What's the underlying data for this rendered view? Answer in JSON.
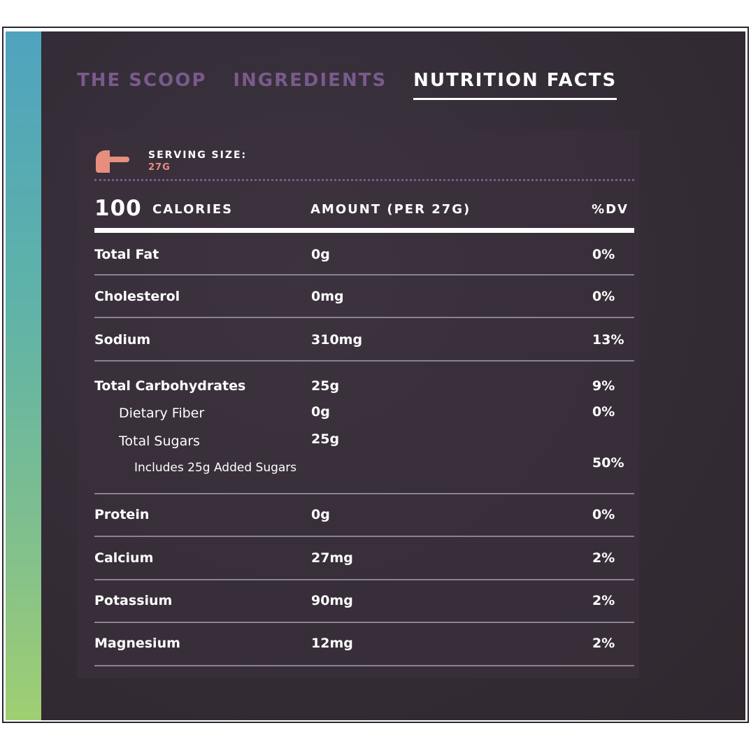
{
  "tabs": [
    {
      "label": "THE SCOOP",
      "active": false
    },
    {
      "label": "INGREDIENTS",
      "active": false
    },
    {
      "label": "NUTRITION FACTS",
      "active": true
    }
  ],
  "serving": {
    "label": "SERVING SIZE:",
    "value": "27G",
    "icon": "scoop-icon"
  },
  "header": {
    "calories_number": "100",
    "calories_label": "CALORIES",
    "amount_label": "AMOUNT (PER 27G)",
    "dv_label": "%DV"
  },
  "rows": [
    {
      "name": "Total Fat",
      "amount": "0g",
      "dv": "0%"
    },
    {
      "name": "Cholesterol",
      "amount": "0mg",
      "dv": "0%"
    },
    {
      "name": "Sodium",
      "amount": "310mg",
      "dv": "13%"
    },
    {
      "name": "Total Carbohydrates",
      "amount": "25g",
      "dv": "9%",
      "sub": [
        {
          "name": "Dietary Fiber",
          "amount": "0g",
          "dv": "0%"
        },
        {
          "name": "Total Sugars",
          "amount": "25g",
          "dv": ""
        },
        {
          "name": "Includes 25g Added Sugars",
          "amount": "",
          "dv": "50%"
        }
      ]
    },
    {
      "name": "Protein",
      "amount": "0g",
      "dv": "0%"
    },
    {
      "name": "Calcium",
      "amount": "27mg",
      "dv": "2%"
    },
    {
      "name": "Potassium",
      "amount": "90mg",
      "dv": "2%"
    },
    {
      "name": "Magnesium",
      "amount": "12mg",
      "dv": "2%"
    }
  ],
  "colors": {
    "background": "#352d37",
    "tab_inactive": "#7a5a8c",
    "tab_active": "#ffffff",
    "serving_value": "#e88e7e",
    "scoop_icon": "#e88e7e",
    "accent_top": "#4fa3be",
    "accent_bottom": "#a0cf72"
  }
}
